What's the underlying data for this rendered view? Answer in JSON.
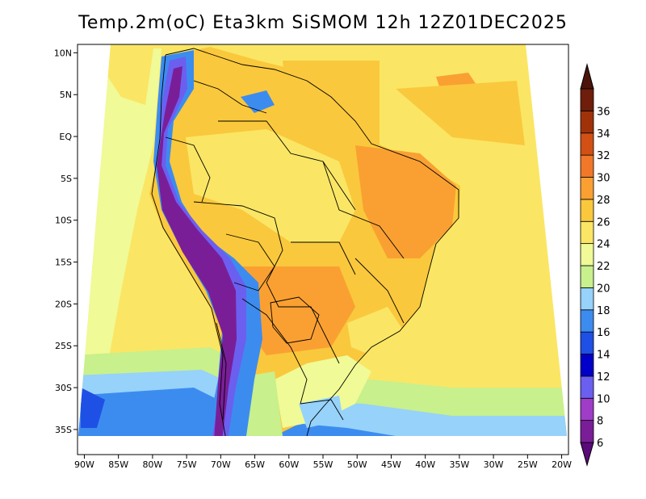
{
  "title": "Temp.2m(oC) Eta3km SiSMOM 12h 12Z01DEC2025",
  "map": {
    "lon_range": [
      -91,
      -19
    ],
    "lat_range": [
      -38,
      11
    ],
    "lat_ticks": [
      {
        "lat": 10,
        "label": "10N"
      },
      {
        "lat": 5,
        "label": "5N"
      },
      {
        "lat": 0,
        "label": "EQ"
      },
      {
        "lat": -5,
        "label": "5S"
      },
      {
        "lat": -10,
        "label": "10S"
      },
      {
        "lat": -15,
        "label": "15S"
      },
      {
        "lat": -20,
        "label": "20S"
      },
      {
        "lat": -25,
        "label": "25S"
      },
      {
        "lat": -30,
        "label": "30S"
      },
      {
        "lat": -35,
        "label": "35S"
      }
    ],
    "lon_ticks": [
      {
        "lon": -90,
        "label": "90W"
      },
      {
        "lon": -85,
        "label": "85W"
      },
      {
        "lon": -80,
        "label": "80W"
      },
      {
        "lon": -75,
        "label": "75W"
      },
      {
        "lon": -70,
        "label": "70W"
      },
      {
        "lon": -65,
        "label": "65W"
      },
      {
        "lon": -60,
        "label": "60W"
      },
      {
        "lon": -55,
        "label": "55W"
      },
      {
        "lon": -50,
        "label": "50W"
      },
      {
        "lon": -45,
        "label": "45W"
      },
      {
        "lon": -40,
        "label": "40W"
      },
      {
        "lon": -35,
        "label": "35W"
      },
      {
        "lon": -30,
        "label": "30W"
      },
      {
        "lon": -25,
        "label": "25W"
      },
      {
        "lon": -20,
        "label": "20W"
      }
    ]
  },
  "colorbar": {
    "levels": [
      "6",
      "8",
      "10",
      "12",
      "14",
      "16",
      "18",
      "20",
      "22",
      "24",
      "26",
      "28",
      "30",
      "32",
      "34",
      "36"
    ],
    "colors": [
      "#7a1e98",
      "#9f3dc8",
      "#6b5ff0",
      "#0000c8",
      "#1e50e6",
      "#3c8cf0",
      "#96d2fa",
      "#c8f08c",
      "#f0fa96",
      "#fae664",
      "#fac83c",
      "#faa032",
      "#f07828",
      "#d25014",
      "#a0320a",
      "#6e1e0a"
    ],
    "under_color": "#5a0a7a",
    "over_color": "#4a140a"
  },
  "colors": {
    "ocean_warm": "#fae664",
    "ocean_light": "#f0fa96",
    "land_hot": "#faa032",
    "land_warm": "#fac83c",
    "andes_cold": "#7a1e98",
    "boundary": "#000000"
  }
}
